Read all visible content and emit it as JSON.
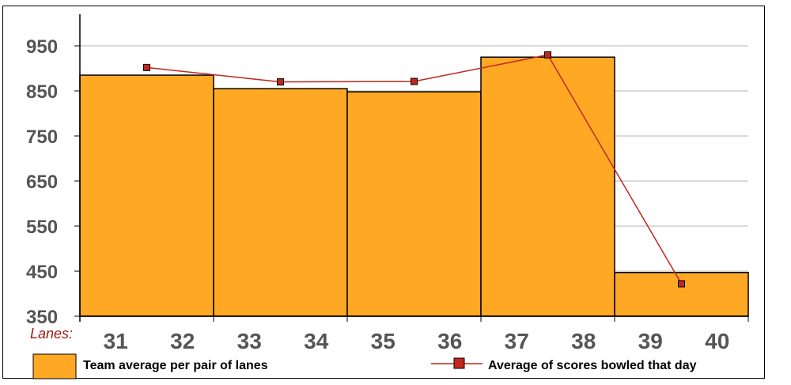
{
  "chart_data": {
    "type": "bar",
    "x_label": "Lanes:",
    "lane_labels": [
      "31",
      "32",
      "33",
      "34",
      "35",
      "36",
      "37",
      "38",
      "39",
      "40"
    ],
    "categories": [
      "31-32",
      "33-34",
      "35-36",
      "37-38",
      "39-40"
    ],
    "ylim": [
      350,
      980
    ],
    "yticks": [
      350,
      450,
      550,
      650,
      750,
      850,
      950
    ],
    "grid": true,
    "legend_position": "bottom",
    "series": [
      {
        "name": "Team average per pair of lanes",
        "type": "bar",
        "values": [
          885,
          855,
          848,
          925,
          447
        ],
        "color": "#ffa824"
      },
      {
        "name": "Average of scores bowled that day",
        "type": "line",
        "values": [
          902,
          870,
          871,
          930,
          422
        ],
        "color": "#c0281c"
      }
    ]
  }
}
